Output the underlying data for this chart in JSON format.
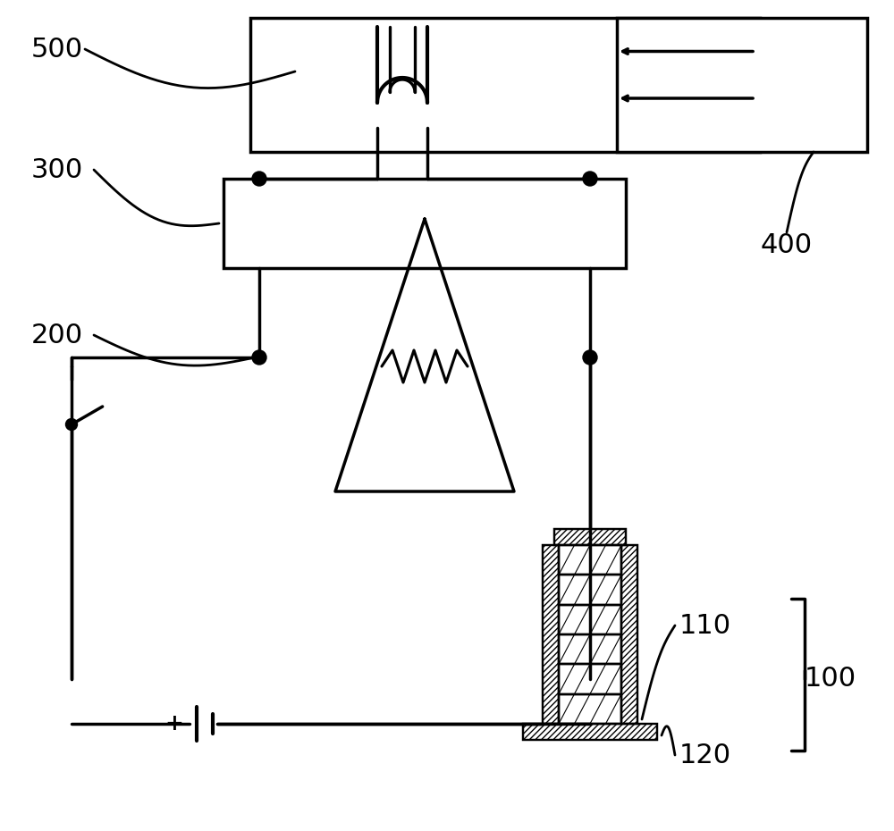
{
  "bg_color": "#ffffff",
  "line_color": "#000000",
  "line_width": 2.5,
  "label_500": "500",
  "label_300": "300",
  "label_200": "200",
  "label_400": "400",
  "label_100": "100",
  "label_110": "110",
  "label_120": "120",
  "font_size_labels": 22
}
